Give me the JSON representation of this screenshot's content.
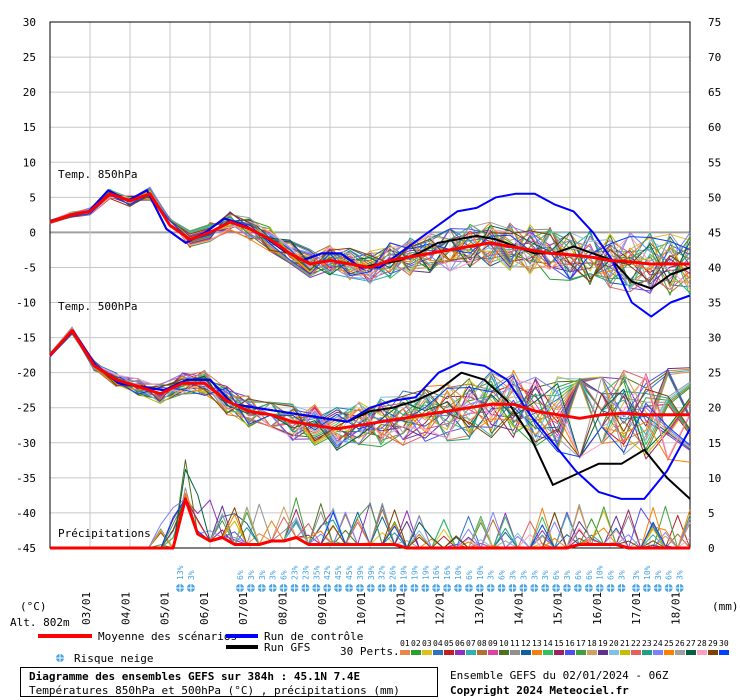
{
  "chart_data": {
    "type": "line",
    "title": "Diagramme des ensembles GEFS sur 384h : 45.1N 7.4E",
    "subtitle": "Températures 850hPa et 500hPa (°C) , précipitations (mm)",
    "y_left": {
      "label": "(°C)",
      "ticks": [
        30,
        25,
        20,
        15,
        10,
        5,
        0,
        -5,
        -10,
        -15,
        -20,
        -25,
        -30,
        -35,
        -40,
        -45
      ],
      "range": [
        -45,
        30
      ]
    },
    "y_right": {
      "label": "(mm)",
      "ticks": [
        75,
        70,
        65,
        60,
        55,
        50,
        45,
        40,
        35,
        30,
        25,
        20,
        15,
        10,
        5,
        0
      ],
      "range": [
        0,
        75
      ]
    },
    "altitude_label": "Alt. 802m",
    "x_ticks": [
      "03/01",
      "04/01",
      "05/01",
      "06/01",
      "07/01",
      "08/01",
      "09/01",
      "10/01",
      "11/01",
      "12/01",
      "13/01",
      "14/01",
      "15/01",
      "16/01",
      "17/01",
      "18/01"
    ],
    "x_range_hours": [
      0,
      384
    ],
    "panel_labels": {
      "t850": "Temp. 850hPa",
      "t500": "Temp. 500hPa",
      "precip": "Précipitations"
    },
    "mean_850": [
      1.5,
      2.5,
      3,
      5.5,
      4.5,
      5.5,
      1,
      -1,
      0,
      1.5,
      0.5,
      -1,
      -3,
      -4.5,
      -4,
      -4.5,
      -5,
      -4,
      -3.5,
      -3,
      -2.5,
      -2,
      -1.5,
      -2,
      -2.5,
      -3,
      -3.2,
      -3.5,
      -4,
      -4.2,
      -4.5,
      -4.5,
      -4.5
    ],
    "control_850": [
      1.5,
      2.5,
      3,
      6,
      4.5,
      6,
      0.5,
      -1.5,
      0,
      2,
      1,
      -0.5,
      -2.5,
      -4,
      -3,
      -3,
      -5,
      -5,
      -3,
      -1,
      1,
      3,
      3.5,
      5,
      5.5,
      5.5,
      4,
      3,
      0,
      -4,
      -10,
      -12,
      -10,
      -9
    ],
    "gfs_850": [
      1.5,
      2.5,
      3,
      6,
      4.5,
      6,
      0.5,
      -1.5,
      0,
      2,
      1,
      -0.5,
      -2.5,
      -4,
      -3,
      -3,
      -5,
      -4.5,
      -4,
      -3,
      -1.5,
      -1,
      -0.5,
      -1,
      -2,
      -3,
      -3,
      -2,
      -3,
      -4,
      -7,
      -8,
      -6,
      -5
    ],
    "mean_500": [
      -17.5,
      -14,
      -19,
      -21,
      -22,
      -23,
      -21.5,
      -21.5,
      -24,
      -25.5,
      -26,
      -27,
      -27.5,
      -28,
      -27.5,
      -27,
      -26.5,
      -26,
      -25.5,
      -25,
      -24.5,
      -24.5,
      -25.5,
      -26,
      -26.5,
      -26,
      -25.8,
      -26,
      -26,
      -26
    ],
    "control_500": [
      -17.5,
      -14,
      -19,
      -21.5,
      -22,
      -22.5,
      -21,
      -21,
      -24.5,
      -25,
      -25.5,
      -26,
      -26.5,
      -27,
      -25,
      -24,
      -23.5,
      -20,
      -18.5,
      -19,
      -21,
      -26,
      -30,
      -34,
      -37,
      -38,
      -38,
      -34,
      -28
    ],
    "gfs_500": [
      -17.5,
      -14,
      -19,
      -21.5,
      -22,
      -22.5,
      -21,
      -21,
      -24.5,
      -25,
      -25.5,
      -26,
      -26.5,
      -27,
      -25.5,
      -25,
      -24,
      -22.5,
      -20,
      -21,
      -24,
      -29,
      -36,
      -34.5,
      -33,
      -33,
      -31,
      -35,
      -38
    ],
    "mean_precip_mm": [
      0,
      0,
      0,
      0,
      0,
      0,
      0,
      0,
      0,
      0,
      0,
      7,
      2,
      1,
      1.5,
      0.5,
      0.5,
      0.5,
      1,
      1,
      1.5,
      0.5,
      0.5,
      0.5,
      0.5,
      0.5,
      0.5,
      0.5,
      0.5,
      0,
      0,
      0,
      0,
      0,
      0,
      0,
      0,
      0,
      0,
      0,
      0,
      0,
      0,
      0.5,
      0.5,
      0.5,
      0.5,
      0,
      0,
      0,
      0,
      0,
      0
    ],
    "legend": {
      "mean": "Moyenne des scénarios",
      "control": "Run de contrôle",
      "gfs": "Run GFS",
      "snow": "Risque neige",
      "perts_label": "30 Perts.",
      "perts_numbers": [
        "01",
        "02",
        "03",
        "04",
        "05",
        "06",
        "07",
        "08",
        "09",
        "10",
        "11",
        "12",
        "13",
        "14",
        "15",
        "16",
        "17",
        "18",
        "19",
        "20",
        "21",
        "22",
        "23",
        "24",
        "25",
        "26",
        "27",
        "28",
        "29",
        "30"
      ],
      "perts_colors": [
        "#e8864a",
        "#2aa02a",
        "#e0c020",
        "#3070c0",
        "#c02020",
        "#9030c0",
        "#30b0b0",
        "#b07030",
        "#e040a0",
        "#507020",
        "#909090",
        "#1060a0",
        "#f08010",
        "#30c060",
        "#a02060",
        "#5050f0",
        "#40a040",
        "#d0a060",
        "#603090",
        "#80c0e0",
        "#c0c000",
        "#e06060",
        "#20a080",
        "#8080ff",
        "#ff8000",
        "#a0a0a0",
        "#006040",
        "#ffa0c0",
        "#804000",
        "#0040ff"
      ]
    },
    "snow_risk": [
      {
        "x": 180,
        "pct": [
          "13%",
          "3%"
        ]
      },
      {
        "x": 240,
        "pct": [
          "6%",
          "3%",
          "3%",
          "3%",
          "6%",
          "23%",
          "23%",
          "35%",
          "42%",
          "45%",
          "45%",
          "39%",
          "39%",
          "32%",
          "26%",
          "19%",
          "19%",
          "19%",
          "16%",
          "16%",
          "10%",
          "6%",
          "10%",
          "3%",
          "6%",
          "3%",
          "3%",
          "3%",
          "3%",
          "6%",
          "3%",
          "6%",
          "6%",
          "10%",
          "6%",
          "3%"
        ]
      },
      {
        "x": 636,
        "pct": [
          "3%",
          "10%",
          "3%",
          "6%",
          "3%"
        ]
      }
    ],
    "colors": {
      "mean": "#ff0000",
      "control": "#0000ff",
      "gfs": "#000000",
      "grid": "#c8c8c8",
      "zero_line": "#a0a0a0",
      "snow": "#4aa3df"
    }
  },
  "footer": {
    "title": "Diagramme des ensembles GEFS sur 384h : 45.1N 7.4E",
    "subtitle": "Températures 850hPa et 500hPa (°C) , précipitations (mm)",
    "run_info": "Ensemble GEFS du 02/01/2024 - 06Z",
    "copyright": "Copyright 2024 Meteociel.fr"
  }
}
